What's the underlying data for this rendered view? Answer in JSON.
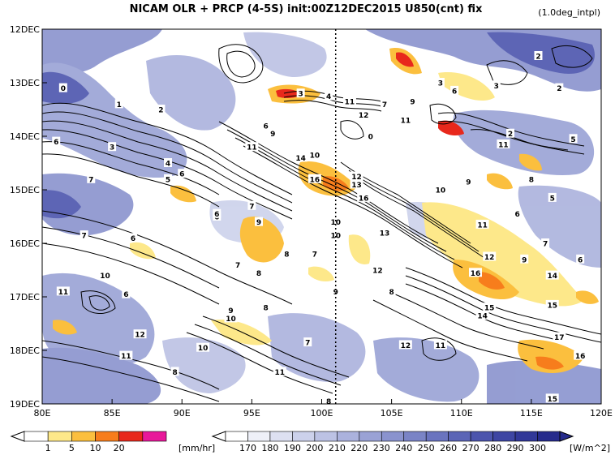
{
  "chart_data": {
    "type": "heatmap",
    "title": "NICAM  OLR + PRCP (4-5S) init:00Z12DEC2015 U850(cnt) fix",
    "subtitle": "(1.0deg_intpl)",
    "x_axis": {
      "range": [
        80,
        120
      ],
      "ticks": [
        "80E",
        "85E",
        "90E",
        "95E",
        "100E",
        "105E",
        "110E",
        "115E",
        "120E"
      ]
    },
    "y_axis": {
      "range": [
        "12DEC",
        "19DEC"
      ],
      "ticks": [
        "12DEC",
        "13DEC",
        "14DEC",
        "15DEC",
        "16DEC",
        "17DEC",
        "18DEC",
        "19DEC"
      ]
    },
    "precip_colorbar": {
      "levels": [
        "1",
        "5",
        "10",
        "20"
      ],
      "unit": "[mm/hr]",
      "colors": [
        "#ffffff",
        "#fde88a",
        "#fbbf3e",
        "#f77d1c",
        "#e8281c",
        "#e8189a"
      ]
    },
    "olr_colorbar": {
      "levels": [
        "170",
        "180",
        "190",
        "200",
        "210",
        "220",
        "230",
        "240",
        "250",
        "260",
        "270",
        "280",
        "290",
        "300"
      ],
      "unit": "[W/m^2]",
      "colors": [
        "#ffffff",
        "#eef0f8",
        "#dde0f1",
        "#ccd1eb",
        "#bcc2e4",
        "#abb2dd",
        "#9aa2d5",
        "#8a93ce",
        "#7a84c6",
        "#6a74bf",
        "#5b65b6",
        "#4c55ad",
        "#3e46a3",
        "#313898",
        "#262b8c"
      ]
    },
    "reference_line_x": 101,
    "contour_labels": [
      {
        "lon": 81.5,
        "day": 1.1,
        "label": "0"
      },
      {
        "lon": 85.5,
        "day": 1.4,
        "label": "1"
      },
      {
        "lon": 88.5,
        "day": 1.5,
        "label": "2"
      },
      {
        "lon": 85.0,
        "day": 2.2,
        "label": "3"
      },
      {
        "lon": 89.0,
        "day": 2.5,
        "label": "4"
      },
      {
        "lon": 89.0,
        "day": 2.8,
        "label": "5"
      },
      {
        "lon": 81.0,
        "day": 2.1,
        "label": "6"
      },
      {
        "lon": 83.5,
        "day": 2.8,
        "label": "7"
      },
      {
        "lon": 90.0,
        "day": 2.7,
        "label": "6"
      },
      {
        "lon": 95.0,
        "day": 3.3,
        "label": "7"
      },
      {
        "lon": 92.5,
        "day": 3.5,
        "label": "6"
      },
      {
        "lon": 96.0,
        "day": 1.8,
        "label": "6"
      },
      {
        "lon": 96.5,
        "day": 1.95,
        "label": "9"
      },
      {
        "lon": 95.0,
        "day": 2.2,
        "label": "11"
      },
      {
        "lon": 98.5,
        "day": 2.4,
        "label": "14"
      },
      {
        "lon": 99.5,
        "day": 2.35,
        "label": "10"
      },
      {
        "lon": 99.5,
        "day": 2.8,
        "label": "16"
      },
      {
        "lon": 98.5,
        "day": 1.2,
        "label": "3"
      },
      {
        "lon": 100.5,
        "day": 1.25,
        "label": "4"
      },
      {
        "lon": 102.0,
        "day": 1.35,
        "label": "11"
      },
      {
        "lon": 103.0,
        "day": 1.6,
        "label": "12"
      },
      {
        "lon": 103.5,
        "day": 2.0,
        "label": "0"
      },
      {
        "lon": 102.5,
        "day": 2.75,
        "label": "12"
      },
      {
        "lon": 102.5,
        "day": 2.9,
        "label": "13"
      },
      {
        "lon": 103.0,
        "day": 3.15,
        "label": "16"
      },
      {
        "lon": 104.5,
        "day": 1.4,
        "label": "7"
      },
      {
        "lon": 106.5,
        "day": 1.35,
        "label": "9"
      },
      {
        "lon": 106.0,
        "day": 1.7,
        "label": "11"
      },
      {
        "lon": 109.5,
        "day": 1.15,
        "label": "6"
      },
      {
        "lon": 108.5,
        "day": 1.0,
        "label": "3"
      },
      {
        "lon": 112.5,
        "day": 1.05,
        "label": "3"
      },
      {
        "lon": 115.5,
        "day": 0.5,
        "label": "2"
      },
      {
        "lon": 117.0,
        "day": 1.1,
        "label": "2"
      },
      {
        "lon": 113.0,
        "day": 2.15,
        "label": "11"
      },
      {
        "lon": 118.0,
        "day": 2.05,
        "label": "5"
      },
      {
        "lon": 113.5,
        "day": 1.95,
        "label": "2"
      },
      {
        "lon": 110.5,
        "day": 2.85,
        "label": "9"
      },
      {
        "lon": 108.5,
        "day": 3.0,
        "label": "10"
      },
      {
        "lon": 115.0,
        "day": 2.8,
        "label": "8"
      },
      {
        "lon": 116.5,
        "day": 3.15,
        "label": "5"
      },
      {
        "lon": 114.0,
        "day": 3.45,
        "label": "6"
      },
      {
        "lon": 111.5,
        "day": 3.65,
        "label": "11"
      },
      {
        "lon": 116.0,
        "day": 4.0,
        "label": "7"
      },
      {
        "lon": 118.5,
        "day": 4.3,
        "label": "6"
      },
      {
        "lon": 112.0,
        "day": 4.25,
        "label": "12"
      },
      {
        "lon": 114.5,
        "day": 4.3,
        "label": "9"
      },
      {
        "lon": 111.0,
        "day": 4.55,
        "label": "16"
      },
      {
        "lon": 116.5,
        "day": 4.6,
        "label": "14"
      },
      {
        "lon": 116.5,
        "day": 5.15,
        "label": "15"
      },
      {
        "lon": 112.0,
        "day": 5.2,
        "label": "15"
      },
      {
        "lon": 111.5,
        "day": 5.35,
        "label": "14"
      },
      {
        "lon": 104.0,
        "day": 4.5,
        "label": "12"
      },
      {
        "lon": 104.5,
        "day": 3.8,
        "label": "13"
      },
      {
        "lon": 101.0,
        "day": 3.6,
        "label": "10"
      },
      {
        "lon": 101.0,
        "day": 3.85,
        "label": "10"
      },
      {
        "lon": 99.5,
        "day": 4.2,
        "label": "7"
      },
      {
        "lon": 97.5,
        "day": 4.2,
        "label": "8"
      },
      {
        "lon": 95.5,
        "day": 3.6,
        "label": "9"
      },
      {
        "lon": 94.0,
        "day": 4.4,
        "label": "7"
      },
      {
        "lon": 95.5,
        "day": 4.55,
        "label": "8"
      },
      {
        "lon": 92.5,
        "day": 3.45,
        "label": "6"
      },
      {
        "lon": 86.5,
        "day": 3.9,
        "label": "6"
      },
      {
        "lon": 83.0,
        "day": 3.85,
        "label": "7"
      },
      {
        "lon": 84.5,
        "day": 4.6,
        "label": "10"
      },
      {
        "lon": 86.0,
        "day": 4.95,
        "label": "6"
      },
      {
        "lon": 81.5,
        "day": 4.9,
        "label": "11"
      },
      {
        "lon": 93.5,
        "day": 5.25,
        "label": "9"
      },
      {
        "lon": 93.5,
        "day": 5.4,
        "label": "10"
      },
      {
        "lon": 96.0,
        "day": 5.2,
        "label": "8"
      },
      {
        "lon": 99.0,
        "day": 5.85,
        "label": "7"
      },
      {
        "lon": 91.5,
        "day": 5.95,
        "label": "10"
      },
      {
        "lon": 87.0,
        "day": 5.7,
        "label": "12"
      },
      {
        "lon": 86.0,
        "day": 6.1,
        "label": "11"
      },
      {
        "lon": 89.5,
        "day": 6.4,
        "label": "8"
      },
      {
        "lon": 97.0,
        "day": 6.4,
        "label": "11"
      },
      {
        "lon": 101.0,
        "day": 4.9,
        "label": "9"
      },
      {
        "lon": 105.0,
        "day": 4.9,
        "label": "8"
      },
      {
        "lon": 106.0,
        "day": 5.9,
        "label": "12"
      },
      {
        "lon": 108.5,
        "day": 5.9,
        "label": "11"
      },
      {
        "lon": 117.0,
        "day": 5.75,
        "label": "17"
      },
      {
        "lon": 118.5,
        "day": 6.1,
        "label": "16"
      },
      {
        "lon": 116.5,
        "day": 6.9,
        "label": "15"
      },
      {
        "lon": 100.5,
        "day": 6.95,
        "label": "8"
      }
    ]
  }
}
